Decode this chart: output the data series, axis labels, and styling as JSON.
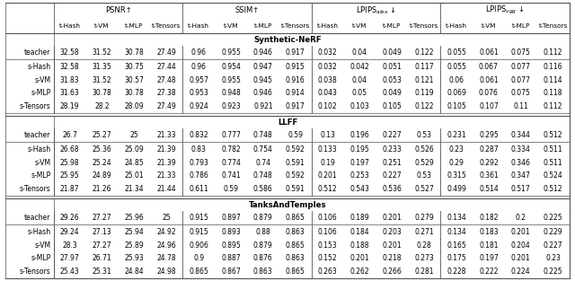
{
  "sub_cols": [
    "t-Hash",
    "t-VM",
    "t-MLP",
    "t-Tensors"
  ],
  "group_headers": [
    "PSNR↑",
    "SSIM↑",
    "LPIPS_alex↓",
    "LPIPS_vgg↓"
  ],
  "sections": [
    {
      "name": "Synthetic-NeRF",
      "teacher": [
        "32.58",
        "31.52",
        "30.78",
        "27.49",
        "0.96",
        "0.955",
        "0.946",
        "0.917",
        "0.032",
        "0.04",
        "0.049",
        "0.122",
        "0.055",
        "0.061",
        "0.075",
        "0.112"
      ],
      "students": [
        [
          "s-Hash",
          "32.58",
          "31.35",
          "30.75",
          "27.44",
          "0.96",
          "0.954",
          "0.947",
          "0.915",
          "0.032",
          "0.042",
          "0.051",
          "0.117",
          "0.055",
          "0.067",
          "0.077",
          "0.116"
        ],
        [
          "s-VM",
          "31.83",
          "31.52",
          "30.57",
          "27.48",
          "0.957",
          "0.955",
          "0.945",
          "0.916",
          "0.038",
          "0.04",
          "0.053",
          "0.121",
          "0.06",
          "0.061",
          "0.077",
          "0.114"
        ],
        [
          "s-MLP",
          "31.63",
          "30.78",
          "30.78",
          "27.38",
          "0.953",
          "0.948",
          "0.946",
          "0.914",
          "0.043",
          "0.05",
          "0.049",
          "0.119",
          "0.069",
          "0.076",
          "0.075",
          "0.118"
        ],
        [
          "s-Tensors",
          "28.19",
          "28.2",
          "28.09",
          "27.49",
          "0.924",
          "0.923",
          "0.921",
          "0.917",
          "0.102",
          "0.103",
          "0.105",
          "0.122",
          "0.105",
          "0.107",
          "0.11",
          "0.112"
        ]
      ]
    },
    {
      "name": "LLFF",
      "teacher": [
        "26.7",
        "25.27",
        "25",
        "21.33",
        "0.832",
        "0.777",
        "0.748",
        "0.59",
        "0.13",
        "0.196",
        "0.227",
        "0.53",
        "0.231",
        "0.295",
        "0.344",
        "0.512"
      ],
      "students": [
        [
          "s-Hash",
          "26.68",
          "25.36",
          "25.09",
          "21.39",
          "0.83",
          "0.782",
          "0.754",
          "0.592",
          "0.133",
          "0.195",
          "0.233",
          "0.526",
          "0.23",
          "0.287",
          "0.334",
          "0.511"
        ],
        [
          "s-VM",
          "25.98",
          "25.24",
          "24.85",
          "21.39",
          "0.793",
          "0.774",
          "0.74",
          "0.591",
          "0.19",
          "0.197",
          "0.251",
          "0.529",
          "0.29",
          "0.292",
          "0.346",
          "0.511"
        ],
        [
          "s-MLP",
          "25.95",
          "24.89",
          "25.01",
          "21.33",
          "0.786",
          "0.741",
          "0.748",
          "0.592",
          "0.201",
          "0.253",
          "0.227",
          "0.53",
          "0.315",
          "0.361",
          "0.347",
          "0.524"
        ],
        [
          "s-Tensors",
          "21.87",
          "21.26",
          "21.34",
          "21.44",
          "0.611",
          "0.59",
          "0.586",
          "0.591",
          "0.512",
          "0.543",
          "0.536",
          "0.527",
          "0.499",
          "0.514",
          "0.517",
          "0.512"
        ]
      ]
    },
    {
      "name": "TanksAndTemples",
      "teacher": [
        "29.26",
        "27.27",
        "25.96",
        "25",
        "0.915",
        "0.897",
        "0.879",
        "0.865",
        "0.106",
        "0.189",
        "0.201",
        "0.279",
        "0.134",
        "0.182",
        "0.2",
        "0.225"
      ],
      "students": [
        [
          "s-Hash",
          "29.24",
          "27.13",
          "25.94",
          "24.92",
          "0.915",
          "0.893",
          "0.88",
          "0.863",
          "0.106",
          "0.184",
          "0.203",
          "0.271",
          "0.134",
          "0.183",
          "0.201",
          "0.229"
        ],
        [
          "s-VM",
          "28.3",
          "27.27",
          "25.89",
          "24.96",
          "0.906",
          "0.895",
          "0.879",
          "0.865",
          "0.153",
          "0.188",
          "0.201",
          "0.28",
          "0.165",
          "0.181",
          "0.204",
          "0.227"
        ],
        [
          "s-MLP",
          "27.97",
          "26.71",
          "25.93",
          "24.78",
          "0.9",
          "0.887",
          "0.876",
          "0.863",
          "0.152",
          "0.201",
          "0.218",
          "0.273",
          "0.175",
          "0.197",
          "0.201",
          "0.23"
        ],
        [
          "s-Tensors",
          "25.43",
          "25.31",
          "24.84",
          "24.98",
          "0.865",
          "0.867",
          "0.863",
          "0.865",
          "0.263",
          "0.262",
          "0.266",
          "0.281",
          "0.228",
          "0.222",
          "0.224",
          "0.225"
        ]
      ]
    }
  ]
}
